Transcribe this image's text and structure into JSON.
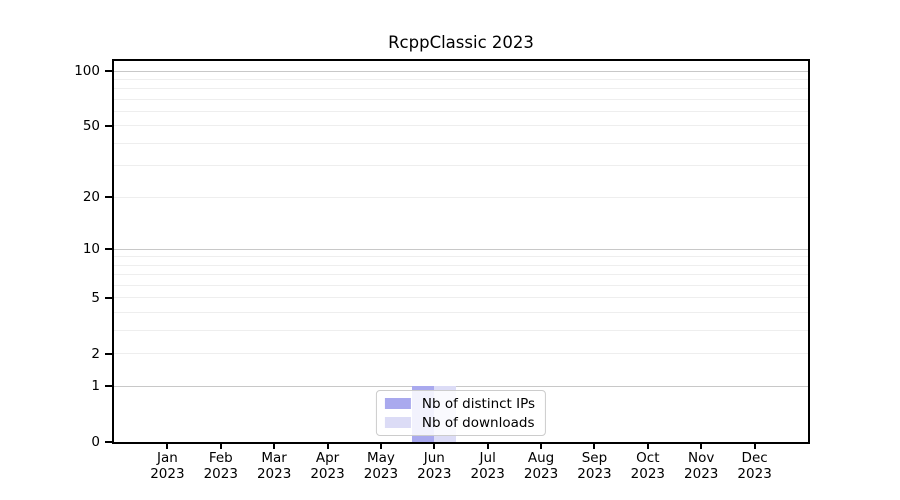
{
  "chart_data": {
    "type": "bar",
    "title": "RcppClassic 2023",
    "scale": "log1p",
    "xlabel": "",
    "ylabel": "",
    "ylim": [
      0,
      100
    ],
    "grid": "on",
    "yticks": [
      0,
      1,
      2,
      5,
      10,
      20,
      50,
      100
    ],
    "gridlines_major": [
      1,
      10,
      100
    ],
    "gridlines_minor": [
      2,
      3,
      4,
      5,
      6,
      7,
      8,
      9,
      20,
      30,
      40,
      50,
      60,
      70,
      80,
      90
    ],
    "categories": [
      {
        "month": "Jan",
        "year": "2023"
      },
      {
        "month": "Feb",
        "year": "2023"
      },
      {
        "month": "Mar",
        "year": "2023"
      },
      {
        "month": "Apr",
        "year": "2023"
      },
      {
        "month": "May",
        "year": "2023"
      },
      {
        "month": "Jun",
        "year": "2023"
      },
      {
        "month": "Jul",
        "year": "2023"
      },
      {
        "month": "Aug",
        "year": "2023"
      },
      {
        "month": "Sep",
        "year": "2023"
      },
      {
        "month": "Oct",
        "year": "2023"
      },
      {
        "month": "Nov",
        "year": "2023"
      },
      {
        "month": "Dec",
        "year": "2023"
      }
    ],
    "series": [
      {
        "name": "Nb of distinct IPs",
        "color": "#a9a9ee",
        "values": [
          0,
          0,
          0,
          0,
          0,
          1,
          0,
          0,
          0,
          0,
          0,
          0
        ]
      },
      {
        "name": "Nb of downloads",
        "color": "#dcdcf6",
        "values": [
          0,
          0,
          0,
          0,
          0,
          1,
          0,
          0,
          0,
          0,
          0,
          0
        ]
      }
    ],
    "legend": {
      "position": "lower center"
    }
  },
  "colors": {
    "grid_major": "#c8c8c8",
    "grid_minor": "#eeeeee",
    "spine": "#000000",
    "text": "#000000",
    "legend_border": "#cccccc"
  }
}
